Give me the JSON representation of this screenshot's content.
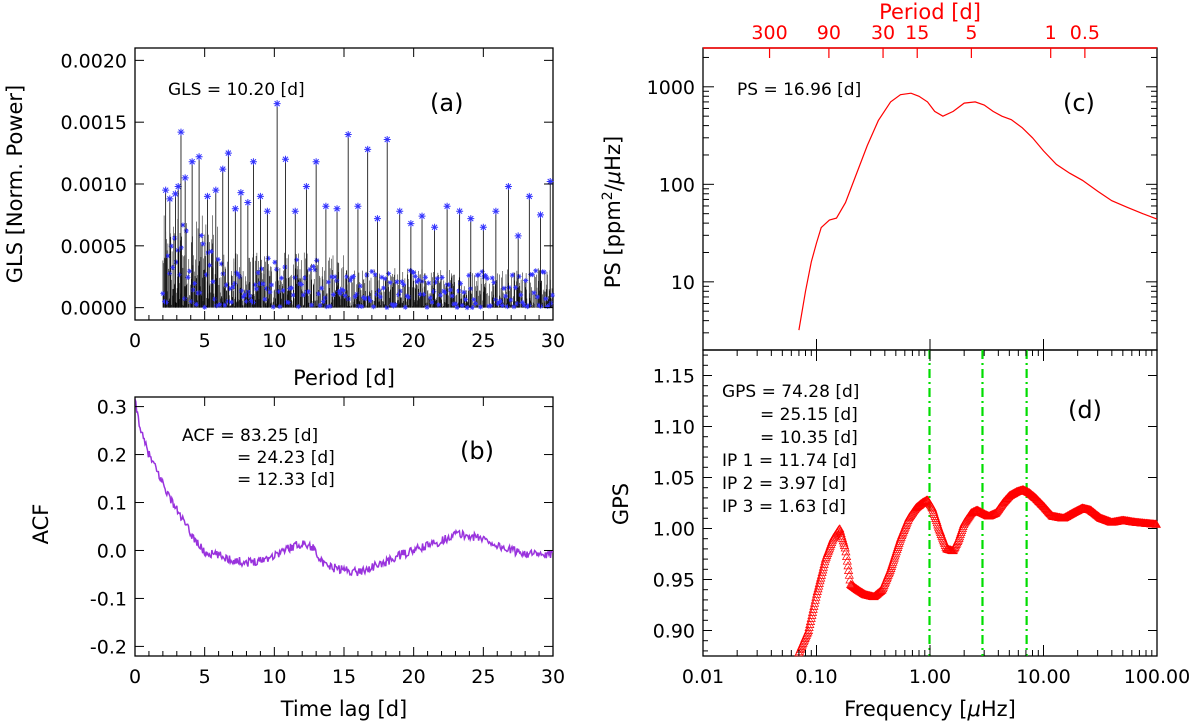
{
  "chart_data": [
    {
      "id": "a",
      "type": "line",
      "panel_label": "(a)",
      "xlabel": "Period [d]",
      "ylabel": "GLS [Norm. Power]",
      "xlim": [
        0,
        30
      ],
      "ylim": [
        -0.0001,
        0.0021
      ],
      "xticks": [
        "0",
        "5",
        "10",
        "15",
        "20",
        "25",
        "30"
      ],
      "yticks": [
        "0.0000",
        "0.0005",
        "0.0010",
        "0.0015",
        "0.0020"
      ],
      "annotation": "GLS = 10.20 [d]",
      "series_color": "#000000",
      "marker_color": "#3333ff",
      "peaks": [
        {
          "x": 2.2,
          "y": 0.00095
        },
        {
          "x": 2.5,
          "y": 0.00088
        },
        {
          "x": 2.9,
          "y": 0.00092
        },
        {
          "x": 3.1,
          "y": 0.00098
        },
        {
          "x": 3.3,
          "y": 0.00142
        },
        {
          "x": 3.6,
          "y": 0.00105
        },
        {
          "x": 4.1,
          "y": 0.00118
        },
        {
          "x": 4.6,
          "y": 0.00122
        },
        {
          "x": 5.2,
          "y": 0.0009
        },
        {
          "x": 5.8,
          "y": 0.00095
        },
        {
          "x": 6.3,
          "y": 0.00112
        },
        {
          "x": 6.7,
          "y": 0.00125
        },
        {
          "x": 7.2,
          "y": 0.0008
        },
        {
          "x": 7.6,
          "y": 0.00093
        },
        {
          "x": 8.1,
          "y": 0.00085
        },
        {
          "x": 8.5,
          "y": 0.00118
        },
        {
          "x": 9.0,
          "y": 0.0009
        },
        {
          "x": 9.5,
          "y": 0.00078
        },
        {
          "x": 10.2,
          "y": 0.00165
        },
        {
          "x": 10.8,
          "y": 0.0012
        },
        {
          "x": 11.5,
          "y": 0.00078
        },
        {
          "x": 12.3,
          "y": 0.00098
        },
        {
          "x": 13.0,
          "y": 0.00118
        },
        {
          "x": 13.7,
          "y": 0.00082
        },
        {
          "x": 14.5,
          "y": 0.0008
        },
        {
          "x": 15.3,
          "y": 0.0014
        },
        {
          "x": 16.0,
          "y": 0.00082
        },
        {
          "x": 16.7,
          "y": 0.00128
        },
        {
          "x": 17.4,
          "y": 0.00072
        },
        {
          "x": 18.1,
          "y": 0.00136
        },
        {
          "x": 19.0,
          "y": 0.00078
        },
        {
          "x": 19.8,
          "y": 0.00068
        },
        {
          "x": 20.6,
          "y": 0.00074
        },
        {
          "x": 21.5,
          "y": 0.00065
        },
        {
          "x": 22.4,
          "y": 0.00082
        },
        {
          "x": 23.3,
          "y": 0.00078
        },
        {
          "x": 24.1,
          "y": 0.00072
        },
        {
          "x": 25.0,
          "y": 0.00065
        },
        {
          "x": 25.9,
          "y": 0.00078
        },
        {
          "x": 26.8,
          "y": 0.00098
        },
        {
          "x": 27.5,
          "y": 0.00058
        },
        {
          "x": 28.3,
          "y": 0.0009
        },
        {
          "x": 29.1,
          "y": 0.00075
        },
        {
          "x": 29.8,
          "y": 0.00102
        }
      ]
    },
    {
      "id": "b",
      "type": "line",
      "panel_label": "(b)",
      "xlabel": "Time lag [d]",
      "ylabel": "ACF",
      "xlim": [
        0,
        30
      ],
      "ylim": [
        -0.22,
        0.32
      ],
      "xticks": [
        "0",
        "5",
        "10",
        "15",
        "20",
        "25",
        "30"
      ],
      "yticks": [
        "-0.2",
        "-0.1",
        "0.0",
        "0.1",
        "0.2",
        "0.3"
      ],
      "annotation_lines": [
        "ACF   = 83.25 [d]",
        "= 24.23 [d]",
        "= 12.33 [d]"
      ],
      "color": "#9933dd",
      "x": [
        0,
        0.5,
        1,
        1.5,
        2,
        2.5,
        3,
        3.5,
        4,
        4.5,
        5,
        6,
        7,
        8,
        9,
        10,
        11,
        12,
        12.5,
        13,
        13.5,
        14,
        15,
        16,
        17,
        18,
        19,
        20,
        21,
        22,
        23,
        24,
        25,
        26,
        27,
        28,
        29,
        30
      ],
      "y": [
        0.31,
        0.24,
        0.2,
        0.17,
        0.14,
        0.11,
        0.085,
        0.06,
        0.035,
        0.015,
        -0.005,
        -0.01,
        -0.02,
        -0.025,
        -0.02,
        -0.01,
        0.005,
        0.015,
        0.01,
        0.0,
        -0.03,
        -0.035,
        -0.04,
        -0.045,
        -0.035,
        -0.025,
        -0.01,
        0.0,
        0.01,
        0.02,
        0.035,
        0.03,
        0.025,
        0.01,
        0.0,
        -0.005,
        -0.01,
        -0.01
      ]
    },
    {
      "id": "c",
      "type": "line",
      "panel_label": "(c)",
      "ylabel_parts": [
        "PS [ppm",
        "2",
        "/",
        "μ",
        "Hz]"
      ],
      "top_axis_label": "Period [d]",
      "top_ticks": [
        "300",
        "90",
        "30",
        "15",
        "5",
        "1",
        "0.5"
      ],
      "top_tick_periods": [
        300,
        90,
        30,
        15,
        5,
        1,
        0.5
      ],
      "xlim": [
        0.01,
        100
      ],
      "ylim": [
        2,
        2500
      ],
      "yticks": [
        "10",
        "100",
        "1000"
      ],
      "annotation": "PS = 16.96 [d]",
      "color": "#ff0000",
      "x": [
        0.07,
        0.08,
        0.09,
        0.1,
        0.11,
        0.13,
        0.15,
        0.18,
        0.22,
        0.28,
        0.35,
        0.45,
        0.55,
        0.68,
        0.8,
        0.95,
        1.1,
        1.3,
        1.6,
        2.0,
        2.5,
        3.0,
        3.6,
        4.3,
        5.2,
        6.5,
        8.0,
        10,
        13,
        17,
        22,
        30,
        40,
        55,
        75,
        100
      ],
      "y": [
        3.2,
        8,
        16,
        25,
        36,
        43,
        45,
        65,
        120,
        250,
        450,
        700,
        830,
        860,
        800,
        700,
        560,
        500,
        560,
        680,
        700,
        650,
        560,
        500,
        460,
        380,
        300,
        220,
        160,
        130,
        110,
        85,
        68,
        58,
        50,
        44
      ]
    },
    {
      "id": "d",
      "type": "scatter",
      "panel_label": "(d)",
      "xlabel_parts": [
        "Frequency [",
        "μ",
        "Hz]"
      ],
      "ylabel": "GPS",
      "xlim": [
        0.01,
        100
      ],
      "ylim": [
        0.875,
        1.175
      ],
      "xticks": [
        "0.01",
        "0.10",
        "1.00",
        "10.00",
        "100.00"
      ],
      "yticks": [
        "0.90",
        "0.95",
        "1.00",
        "1.05",
        "1.10",
        "1.15"
      ],
      "annotation_lines": [
        "GPS = 74.28 [d]",
        "= 25.15 [d]",
        "= 10.35 [d]",
        "IP 1 = 11.74 [d]",
        "IP 2 = 3.97  [d]",
        "IP 3 = 1.63  [d]"
      ],
      "color": "#ff0000",
      "vlines_color": "#00dd00",
      "vlines_x": [
        0.99,
        2.9,
        7.1
      ],
      "x": [
        0.07,
        0.085,
        0.1,
        0.12,
        0.14,
        0.16,
        0.18,
        0.2,
        0.23,
        0.27,
        0.32,
        0.38,
        0.45,
        0.55,
        0.65,
        0.75,
        0.85,
        0.95,
        1.05,
        1.2,
        1.4,
        1.6,
        1.8,
        2.0,
        2.3,
        2.6,
        2.9,
        3.3,
        3.8,
        4.4,
        5.0,
        5.8,
        6.6,
        7.5,
        8.5,
        10,
        12,
        15,
        18,
        22,
        26,
        32,
        40,
        50,
        65,
        80,
        100
      ],
      "y": [
        0.878,
        0.9,
        0.935,
        0.97,
        0.99,
        1.0,
        0.98,
        0.945,
        0.94,
        0.935,
        0.933,
        0.94,
        0.96,
        0.99,
        1.01,
        1.02,
        1.025,
        1.028,
        1.02,
        1.0,
        0.98,
        0.978,
        0.99,
        1.005,
        1.015,
        1.018,
        1.015,
        1.012,
        1.015,
        1.025,
        1.032,
        1.036,
        1.038,
        1.035,
        1.03,
        1.022,
        1.012,
        1.01,
        1.015,
        1.02,
        1.018,
        1.01,
        1.006,
        1.008,
        1.006,
        1.005,
        1.004
      ]
    }
  ]
}
